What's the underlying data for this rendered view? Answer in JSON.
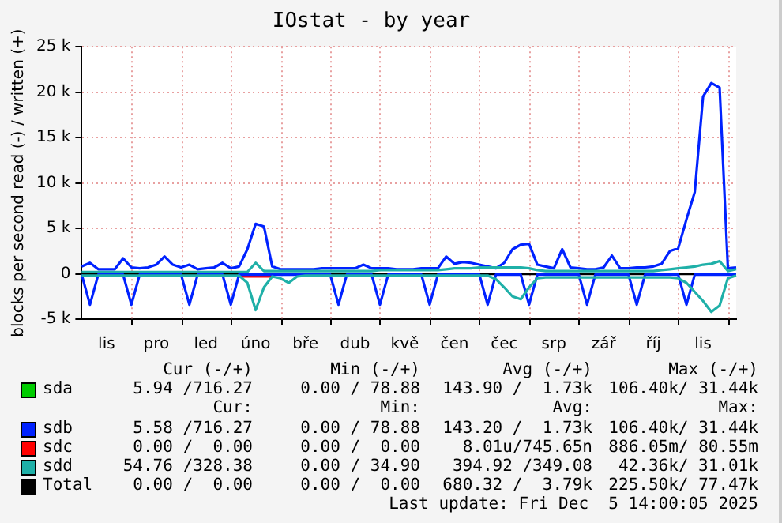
{
  "chart_data": {
    "type": "line",
    "title": "IOstat - by year",
    "ylabel": "blocks per second read (-) / written (+)",
    "categories": [
      null,
      null,
      null,
      "lis",
      null,
      null,
      null,
      null,
      null,
      "pro",
      null,
      null,
      null,
      null,
      null,
      "led",
      null,
      null,
      null,
      null,
      null,
      "úno",
      null,
      null,
      null,
      null,
      null,
      "bře",
      null,
      null,
      null,
      null,
      null,
      "dub",
      null,
      null,
      null,
      null,
      null,
      "kvě",
      null,
      null,
      null,
      null,
      null,
      "čen",
      null,
      null,
      null,
      null,
      null,
      "čec",
      null,
      null,
      null,
      null,
      null,
      "srp",
      null,
      null,
      null,
      null,
      null,
      "zář",
      null,
      null,
      null,
      null,
      null,
      "říj",
      null,
      null,
      null,
      null,
      null,
      "lis",
      null,
      null,
      null,
      null
    ],
    "ylim": [
      -5000,
      25000
    ],
    "yticks": [
      {
        "value": -5000,
        "label": "-5 k"
      },
      0,
      {
        "value": 5000,
        "label": "5 k"
      },
      {
        "value": 10000,
        "label": "10 k"
      },
      {
        "value": 15000,
        "label": "15 k"
      },
      {
        "value": 20000,
        "label": "20 k"
      },
      {
        "value": 25000,
        "label": "25 k"
      }
    ],
    "grid": true,
    "legend": "bottom",
    "marker": "none",
    "line_style": "solid",
    "series": [
      {
        "name": "sda",
        "color": "#00cc00",
        "values": [
          null,
          null,
          null,
          null,
          null,
          null,
          null,
          null,
          null,
          null,
          null,
          null,
          null,
          null,
          null,
          null,
          null,
          null,
          null,
          null,
          null,
          null,
          null,
          null,
          null,
          null,
          null,
          null,
          null,
          null,
          null,
          null,
          null,
          null,
          null,
          null,
          null,
          null,
          null,
          null,
          null,
          null,
          null,
          null,
          null,
          null,
          null,
          null,
          null,
          null,
          null,
          null,
          null,
          null,
          null,
          null,
          null,
          null,
          null,
          null,
          null,
          null,
          null,
          null,
          null,
          null,
          null,
          null,
          null,
          null,
          null,
          null,
          null,
          null,
          null,
          null,
          null,
          null,
          null,
          null
        ]
      },
      {
        "name": "sdb",
        "color": "#0022ff",
        "values": [
          800,
          1200,
          500,
          500,
          500,
          1700,
          700,
          600,
          700,
          1000,
          1900,
          1000,
          700,
          1000,
          500,
          600,
          700,
          1200,
          600,
          800,
          2700,
          5500,
          5200,
          800,
          500,
          500,
          500,
          500,
          500,
          600,
          600,
          600,
          600,
          600,
          1000,
          600,
          600,
          600,
          500,
          500,
          500,
          600,
          600,
          600,
          1900,
          1100,
          1300,
          1200,
          1000,
          800,
          600,
          1200,
          2700,
          3200,
          3300,
          1000,
          800,
          600,
          2700,
          700,
          600,
          500,
          500,
          700,
          2000,
          600,
          600,
          700,
          700,
          800,
          1100,
          2500,
          2800,
          6000,
          9000,
          19500,
          21000,
          20500,
          600,
          700
        ]
      },
      {
        "name": "sdc",
        "color": "#ff0000",
        "values": [
          null,
          null,
          null,
          null,
          null,
          null,
          null,
          null,
          null,
          null,
          null,
          null,
          null,
          null,
          null,
          null,
          null,
          null,
          null,
          -300,
          -300,
          -300,
          -300,
          -300,
          null,
          null,
          null,
          null,
          null,
          null,
          null,
          null,
          null,
          null,
          null,
          null,
          null,
          null,
          null,
          null,
          null,
          null,
          null,
          null,
          null,
          null,
          null,
          null,
          null,
          null,
          null,
          null,
          null,
          null,
          null,
          null,
          null,
          null,
          null,
          null,
          null,
          null,
          null,
          null,
          null,
          null,
          null,
          null,
          null,
          null,
          null,
          null,
          null,
          null,
          null,
          null,
          null,
          null,
          null,
          null
        ]
      },
      {
        "name": "sdd",
        "color": "#1fb0a8",
        "values": [
          200,
          200,
          200,
          200,
          200,
          200,
          200,
          200,
          200,
          200,
          200,
          200,
          200,
          200,
          200,
          200,
          200,
          200,
          200,
          200,
          200,
          1200,
          300,
          300,
          300,
          300,
          300,
          300,
          300,
          300,
          300,
          300,
          300,
          300,
          300,
          300,
          400,
          400,
          400,
          400,
          400,
          400,
          400,
          400,
          500,
          600,
          600,
          600,
          700,
          700,
          700,
          700,
          700,
          700,
          600,
          400,
          300,
          300,
          300,
          300,
          300,
          300,
          300,
          300,
          300,
          300,
          300,
          300,
          300,
          300,
          400,
          500,
          600,
          700,
          800,
          1000,
          1100,
          1400,
          300,
          500
        ]
      },
      {
        "name": "Total",
        "color": "#000000",
        "values": [
          0,
          0,
          0,
          0,
          0,
          0,
          0,
          0,
          0,
          0,
          0,
          0,
          0,
          0,
          0,
          0,
          0,
          0,
          0,
          0,
          0,
          0,
          0,
          0,
          0,
          0,
          0,
          0,
          0,
          0,
          0,
          0,
          0,
          0,
          0,
          0,
          0,
          0,
          0,
          0,
          0,
          0,
          0,
          0,
          0,
          0,
          0,
          0,
          0,
          0,
          0,
          0,
          0,
          0,
          0,
          0,
          0,
          0,
          0,
          0,
          0,
          0,
          0,
          0,
          0,
          0,
          0,
          0,
          0,
          0,
          0,
          0,
          0,
          0,
          0,
          0,
          0,
          0,
          0,
          0
        ]
      },
      {
        "color": "#0022ff",
        "values": [
          -100,
          -3400,
          -100,
          -100,
          -100,
          -100,
          -3400,
          -100,
          -100,
          -100,
          -100,
          -100,
          -100,
          -3400,
          -100,
          -100,
          -100,
          -100,
          -3400,
          -100,
          -100,
          -100,
          -100,
          -100,
          -100,
          -100,
          -100,
          -100,
          -100,
          -100,
          -100,
          -3400,
          -100,
          -100,
          -100,
          -100,
          -3400,
          -100,
          -100,
          -100,
          -100,
          -100,
          -3400,
          -100,
          -100,
          -100,
          -100,
          -100,
          -100,
          -3400,
          -100,
          -100,
          -100,
          -100,
          -3400,
          -100,
          -100,
          -100,
          -100,
          -100,
          -100,
          -3400,
          -100,
          -100,
          -100,
          -100,
          -100,
          -3400,
          -100,
          -100,
          -100,
          -100,
          -100,
          -3400,
          -100,
          -100,
          -100,
          -100,
          -100,
          -100
        ]
      },
      {
        "color": "#1fb0a8",
        "values": [
          -200,
          -200,
          -200,
          -200,
          -200,
          -200,
          -200,
          -200,
          -200,
          -200,
          -200,
          -200,
          -200,
          -200,
          -200,
          -200,
          -200,
          -200,
          -200,
          -200,
          -1000,
          -4000,
          -1500,
          -300,
          -500,
          -1000,
          -300,
          -200,
          -200,
          -200,
          -200,
          -200,
          -200,
          -200,
          -200,
          -200,
          -200,
          -200,
          -200,
          -200,
          -200,
          -200,
          -200,
          -200,
          -200,
          -200,
          -200,
          -200,
          -200,
          -200,
          -600,
          -1500,
          -2500,
          -2800,
          -1500,
          -500,
          -400,
          -400,
          -400,
          -400,
          -400,
          -400,
          -400,
          -400,
          -400,
          -400,
          -400,
          -400,
          -400,
          -400,
          -400,
          -400,
          -500,
          -1000,
          -2000,
          -3000,
          -4200,
          -3500,
          -500,
          -200
        ]
      }
    ],
    "annotations": [
      "Cur (-/+)",
      "Min (-/+)",
      "Avg (-/+)",
      "Max (-/+)",
      "Cur:",
      "Min:",
      "Avg:",
      "Max:",
      "5.94 /716.27",
      "0.00 / 78.88",
      "143.90 /  1.73k",
      "106.40k/ 31.44k",
      "5.58 /716.27",
      "0.00 / 78.88",
      "143.20 /  1.73k",
      "106.40k/ 31.44k",
      "0.00 /  0.00",
      "0.00 /  0.00",
      "8.01u/745.65n",
      "886.05m/ 80.55m",
      "54.76 /328.38",
      "0.00 / 34.90",
      "394.92 /349.08",
      "42.36k/ 31.01k",
      "0.00 /  0.00",
      "0.00 /  0.00",
      "680.32 /  3.79k",
      "225.50k/ 77.47k",
      "Last update: Fri Dec  5 14:00:05 2025"
    ]
  }
}
